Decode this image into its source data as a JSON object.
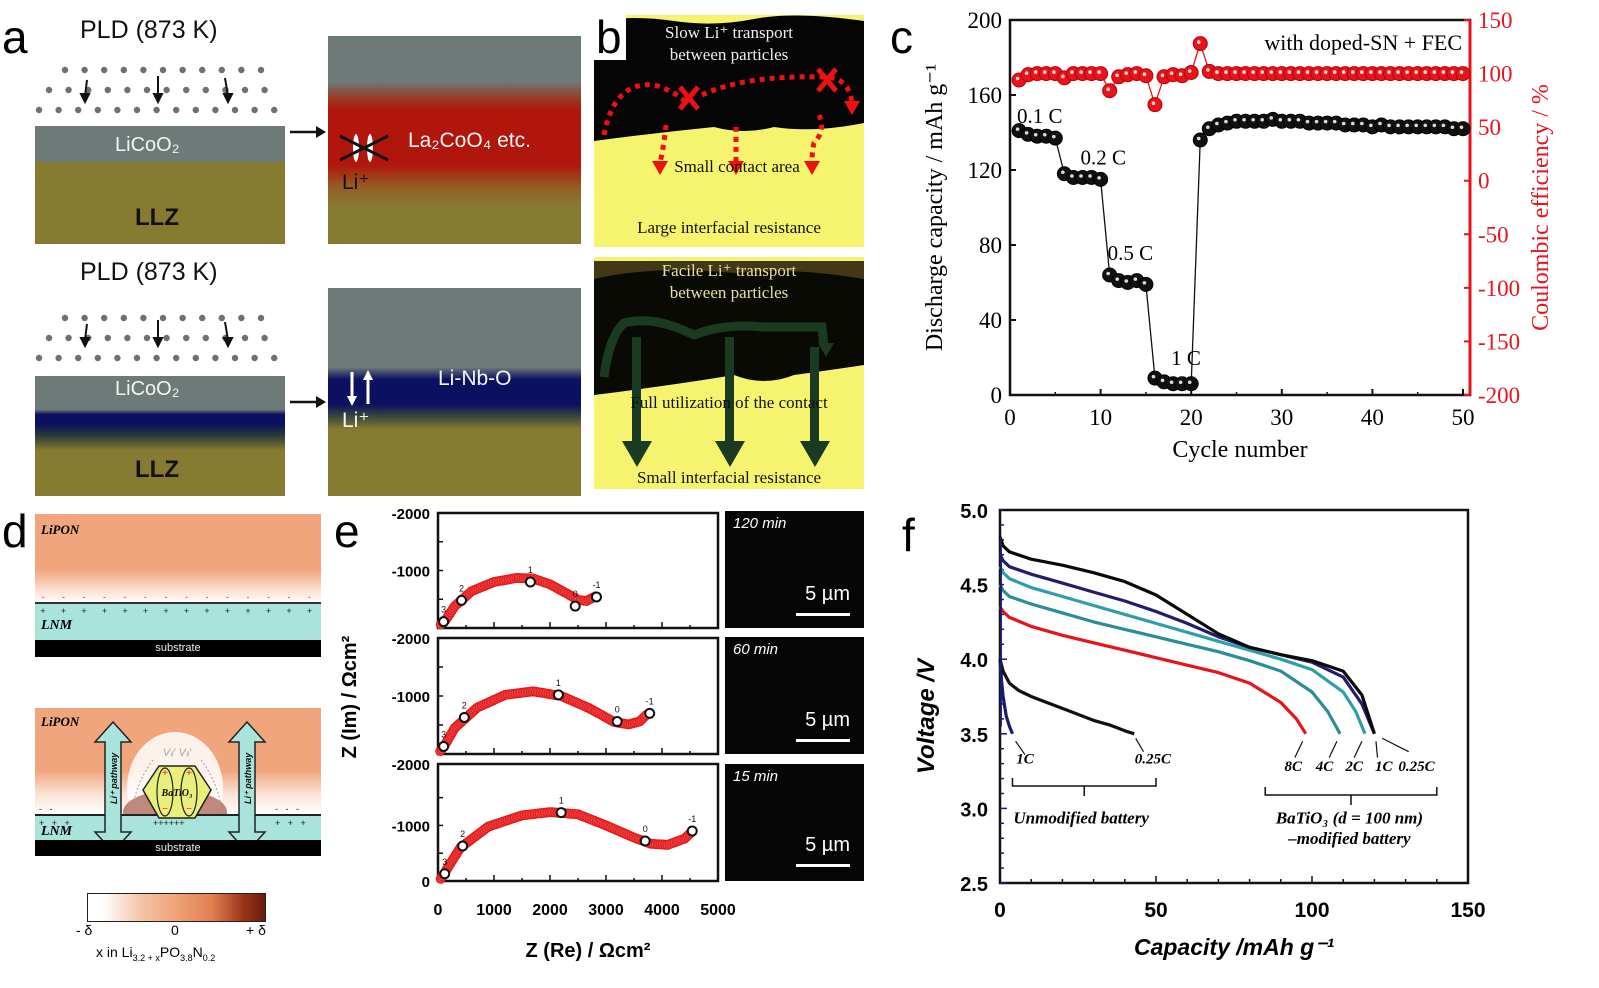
{
  "panel_labels": {
    "a": "a",
    "b": "b",
    "c": "c",
    "d": "d",
    "e": "e",
    "f": "f"
  },
  "panel_a": {
    "top": {
      "title": "PLD (873 K)",
      "layer_left_top": "LiCoO₂",
      "substrate": "LLZ",
      "interface_label": "La₂CoO₄ etc.",
      "ion": "Li⁺",
      "blocked": true,
      "interface_color": "#b0160c"
    },
    "bottom": {
      "title": "PLD (873 K)",
      "layer_left_top": "LiCoO₂",
      "substrate": "LLZ",
      "interface_label": "Li-Nb-O",
      "ion": "Li⁺",
      "blocked": false,
      "interface_color": "#0c1060"
    },
    "colors": {
      "licoo2": "#6e7a78",
      "llz": "#877b32"
    }
  },
  "panel_b": {
    "top": {
      "line1": "Slow Li⁺ transport",
      "line2": "between particles",
      "mid": "Small contact area",
      "bottom": "Large interfacial resistance"
    },
    "bottom": {
      "line1": "Facile Li⁺ transport",
      "line2": "between particles",
      "mid": "Full utilization of the contact",
      "bottom": "Small interfacial resistance"
    },
    "colors": {
      "electrolyte": "#f6f36e",
      "particle": "#050505",
      "blocked_path": "#ee1111",
      "fast_path": "#1a3a22"
    }
  },
  "panel_d": {
    "top": {
      "electrolyte": "LiPON",
      "electrode": "LNM",
      "substrate": "substrate"
    },
    "bottom": {
      "electrolyte": "LiPON",
      "electrode": "LNM",
      "substrate": "substrate",
      "particle": "BaTiO₃",
      "vacancy": "Vₗᵢ′",
      "pathway": "Li⁺ pathway",
      "ion": "Li⁺"
    },
    "colorbar": {
      "min": "- δ",
      "mid": "0",
      "max": "+ δ",
      "caption": "x in Li",
      "caption_sub1": "3.2 + x",
      "caption_mid": "PO",
      "caption_sub2": "3.8",
      "caption_end": "N",
      "caption_sub3": "0.2"
    },
    "colors": {
      "lipon": "#f0a57c",
      "lnm": "#a8e4dc",
      "substrate": "#000000"
    }
  },
  "panel_e_micro": [
    {
      "time": "120 min",
      "scale": "5 µm"
    },
    {
      "time": "60 min",
      "scale": "5 µm"
    },
    {
      "time": "15 min",
      "scale": "5 µm"
    }
  ],
  "chart_data": [
    {
      "id": "c",
      "type": "scatter",
      "title": "",
      "annotation": "with doped-SN + FEC",
      "xlabel": "Cycle number",
      "ylabel": "Discharge capacity / mAh g⁻¹",
      "y2label": "Coulombic efficiency / %",
      "xlim": [
        0,
        50
      ],
      "ylim": [
        0,
        200
      ],
      "y2lim": [
        -200,
        150
      ],
      "xticks": [
        0,
        10,
        20,
        30,
        40,
        50
      ],
      "yticks": [
        0,
        40,
        80,
        120,
        160,
        200
      ],
      "y2ticks": [
        -200,
        -150,
        -100,
        -50,
        0,
        50,
        100,
        150
      ],
      "rate_labels": [
        {
          "text": "0.1 C",
          "x": 1,
          "y": 145
        },
        {
          "text": "0.2 C",
          "x": 8,
          "y": 123
        },
        {
          "text": "0.5 C",
          "x": 11,
          "y": 72
        },
        {
          "text": "1 C",
          "x": 18,
          "y": 16
        }
      ],
      "series": [
        {
          "name": "Discharge capacity",
          "axis": "left",
          "color": "#111111",
          "x": [
            1,
            2,
            3,
            4,
            5,
            6,
            7,
            8,
            9,
            10,
            11,
            12,
            13,
            14,
            15,
            16,
            17,
            18,
            19,
            20,
            21,
            22,
            23,
            24,
            25,
            26,
            27,
            28,
            29,
            30,
            31,
            32,
            33,
            34,
            35,
            36,
            37,
            38,
            39,
            40,
            41,
            42,
            43,
            44,
            45,
            46,
            47,
            48,
            49,
            50
          ],
          "values": [
            141,
            139,
            138,
            138,
            137,
            118,
            116,
            116,
            116,
            115,
            64,
            61,
            60,
            61,
            59,
            9,
            7,
            6,
            6,
            6,
            136,
            142,
            144,
            145,
            146,
            146,
            146,
            146,
            147,
            146,
            146,
            146,
            145,
            145,
            145,
            145,
            144,
            144,
            144,
            143,
            144,
            143,
            143,
            143,
            143,
            143,
            143,
            143,
            142,
            142
          ]
        },
        {
          "name": "Coulombic efficiency",
          "axis": "right",
          "color": "#e8141c",
          "x": [
            1,
            2,
            3,
            4,
            5,
            6,
            7,
            8,
            9,
            10,
            11,
            12,
            13,
            14,
            15,
            16,
            17,
            18,
            19,
            20,
            21,
            22,
            23,
            24,
            25,
            26,
            27,
            28,
            29,
            30,
            31,
            32,
            33,
            34,
            35,
            36,
            37,
            38,
            39,
            40,
            41,
            42,
            43,
            44,
            45,
            46,
            47,
            48,
            49,
            50
          ],
          "values": [
            94,
            99,
            100,
            100,
            100,
            96,
            100,
            100,
            100,
            100,
            84,
            97,
            99,
            100,
            98,
            71,
            97,
            99,
            98,
            101,
            128,
            102,
            100,
            100,
            100,
            100,
            100,
            100,
            100,
            100,
            100,
            100,
            100,
            100,
            100,
            100,
            100,
            100,
            100,
            100,
            100,
            100,
            100,
            100,
            100,
            100,
            100,
            100,
            100,
            100
          ]
        }
      ]
    },
    {
      "id": "e",
      "type": "scatter",
      "title": "",
      "xlabel": "Z (Re) / Ωcm²",
      "ylabel": "Z (Im) / Ωcm²",
      "xlim": [
        0,
        5000
      ],
      "ylim": [
        0,
        -2000
      ],
      "xticks": [
        0,
        1000,
        2000,
        3000,
        4000,
        5000
      ],
      "yticks_top": [
        "-2000",
        "-1000"
      ],
      "yticks_bottom": [
        "-2000",
        "-1000",
        "0"
      ],
      "subplots": [
        {
          "label": "120 min",
          "points": [
            {
              "x": 50,
              "y": -60
            },
            {
              "x": 130,
              "y": -130
            },
            {
              "x": 300,
              "y": -380
            },
            {
              "x": 600,
              "y": -640
            },
            {
              "x": 1000,
              "y": -800
            },
            {
              "x": 1400,
              "y": -870
            },
            {
              "x": 1700,
              "y": -860
            },
            {
              "x": 2000,
              "y": -760
            },
            {
              "x": 2300,
              "y": -600
            },
            {
              "x": 2500,
              "y": -490
            },
            {
              "x": 2650,
              "y": -470
            },
            {
              "x": 2850,
              "y": -570
            }
          ],
          "markers": [
            {
              "t": "3",
              "x": 100,
              "y": -110
            },
            {
              "t": "2",
              "x": 420,
              "y": -480
            },
            {
              "t": "1",
              "x": 1650,
              "y": -800
            },
            {
              "t": "0",
              "x": 2450,
              "y": -380
            },
            {
              "t": "-1",
              "x": 2830,
              "y": -540
            }
          ]
        },
        {
          "label": "60 min",
          "points": [
            {
              "x": 40,
              "y": -50
            },
            {
              "x": 120,
              "y": -150
            },
            {
              "x": 300,
              "y": -450
            },
            {
              "x": 700,
              "y": -800
            },
            {
              "x": 1200,
              "y": -1020
            },
            {
              "x": 1700,
              "y": -1080
            },
            {
              "x": 2200,
              "y": -1000
            },
            {
              "x": 2700,
              "y": -790
            },
            {
              "x": 3150,
              "y": -550
            },
            {
              "x": 3400,
              "y": -510
            },
            {
              "x": 3600,
              "y": -560
            },
            {
              "x": 3750,
              "y": -700
            }
          ],
          "markers": [
            {
              "t": "3",
              "x": 100,
              "y": -130
            },
            {
              "t": "2",
              "x": 470,
              "y": -630
            },
            {
              "t": "1",
              "x": 2150,
              "y": -1020
            },
            {
              "t": "0",
              "x": 3200,
              "y": -560
            },
            {
              "t": "-1",
              "x": 3780,
              "y": -700
            }
          ]
        },
        {
          "label": "15 min",
          "points": [
            {
              "x": 50,
              "y": -40
            },
            {
              "x": 150,
              "y": -200
            },
            {
              "x": 400,
              "y": -600
            },
            {
              "x": 900,
              "y": -980
            },
            {
              "x": 1500,
              "y": -1180
            },
            {
              "x": 2000,
              "y": -1240
            },
            {
              "x": 2500,
              "y": -1200
            },
            {
              "x": 3000,
              "y": -1000
            },
            {
              "x": 3500,
              "y": -780
            },
            {
              "x": 3800,
              "y": -670
            },
            {
              "x": 4100,
              "y": -650
            },
            {
              "x": 4400,
              "y": -760
            },
            {
              "x": 4550,
              "y": -900
            }
          ],
          "markers": [
            {
              "t": "3",
              "x": 120,
              "y": -130
            },
            {
              "t": "2",
              "x": 440,
              "y": -630
            },
            {
              "t": "1",
              "x": 2200,
              "y": -1230
            },
            {
              "t": "0",
              "x": 3700,
              "y": -720
            },
            {
              "t": "-1",
              "x": 4540,
              "y": -900
            }
          ]
        }
      ]
    },
    {
      "id": "f",
      "type": "line",
      "title": "",
      "xlabel": "Capacity /mAh g⁻¹",
      "ylabel": "Voltage /V",
      "xlim": [
        0,
        150
      ],
      "ylim": [
        2.5,
        5.0
      ],
      "xticks": [
        0,
        50,
        100,
        150
      ],
      "yticks": [
        2.5,
        3.0,
        3.5,
        4.0,
        4.5,
        5.0
      ],
      "group_labels": [
        {
          "text": "Unmodified battery",
          "x": 26,
          "y": 2.9
        },
        {
          "text": "BaTiO₃ (d = 100 nm)",
          "x": 112,
          "y": 2.9
        },
        {
          "text": "–modified  battery",
          "x": 112,
          "y": 2.76
        }
      ],
      "series": [
        {
          "name": "Unmodified 1C",
          "color": "#1a1a70",
          "x": [
            0,
            0.5,
            1,
            2,
            3,
            4
          ],
          "values": [
            4.0,
            3.85,
            3.75,
            3.62,
            3.55,
            3.5
          ],
          "label": "1C"
        },
        {
          "name": "Unmodified 0.25C",
          "color": "#111111",
          "x": [
            0,
            1,
            3,
            6,
            10,
            15,
            20,
            25,
            30,
            35,
            40,
            43
          ],
          "values": [
            4.0,
            3.92,
            3.84,
            3.79,
            3.75,
            3.71,
            3.67,
            3.63,
            3.59,
            3.56,
            3.52,
            3.5
          ],
          "label": "0.25C"
        },
        {
          "name": "Modified 8C",
          "color": "#e8141c",
          "x": [
            0,
            1,
            3,
            10,
            20,
            30,
            40,
            50,
            60,
            70,
            80,
            90,
            95,
            98
          ],
          "values": [
            4.35,
            4.32,
            4.28,
            4.22,
            4.16,
            4.11,
            4.06,
            4.01,
            3.96,
            3.91,
            3.84,
            3.71,
            3.6,
            3.5
          ],
          "label": "8C"
        },
        {
          "name": "Modified 4C",
          "color": "#2b8c9a",
          "x": [
            0,
            1,
            3,
            10,
            20,
            30,
            40,
            50,
            60,
            70,
            80,
            90,
            100,
            105,
            109
          ],
          "values": [
            4.5,
            4.46,
            4.42,
            4.37,
            4.31,
            4.25,
            4.2,
            4.15,
            4.1,
            4.05,
            3.99,
            3.92,
            3.78,
            3.65,
            3.5
          ],
          "label": "4C"
        },
        {
          "name": "Modified 2C",
          "color": "#2f9eab",
          "x": [
            0,
            1,
            3,
            10,
            20,
            30,
            40,
            50,
            60,
            70,
            80,
            90,
            100,
            110,
            114,
            117
          ],
          "values": [
            4.62,
            4.58,
            4.54,
            4.48,
            4.42,
            4.36,
            4.3,
            4.24,
            4.18,
            4.12,
            4.06,
            4.0,
            3.93,
            3.78,
            3.65,
            3.5
          ],
          "label": "2C"
        },
        {
          "name": "Modified 1C",
          "color": "#241d6e",
          "x": [
            0,
            1,
            3,
            10,
            20,
            30,
            40,
            50,
            60,
            70,
            80,
            90,
            100,
            110,
            116,
            120
          ],
          "values": [
            4.7,
            4.66,
            4.62,
            4.57,
            4.51,
            4.45,
            4.39,
            4.32,
            4.24,
            4.15,
            4.08,
            4.03,
            3.98,
            3.88,
            3.7,
            3.5
          ],
          "label": "1C"
        },
        {
          "name": "Modified 0.25C",
          "color": "#0a0a0a",
          "x": [
            0,
            1,
            3,
            10,
            20,
            30,
            40,
            50,
            60,
            70,
            80,
            90,
            100,
            110,
            116,
            120
          ],
          "values": [
            4.82,
            4.76,
            4.72,
            4.67,
            4.63,
            4.58,
            4.52,
            4.43,
            4.3,
            4.17,
            4.08,
            4.03,
            3.99,
            3.92,
            3.76,
            3.5
          ],
          "label": "0.25C"
        }
      ]
    }
  ]
}
